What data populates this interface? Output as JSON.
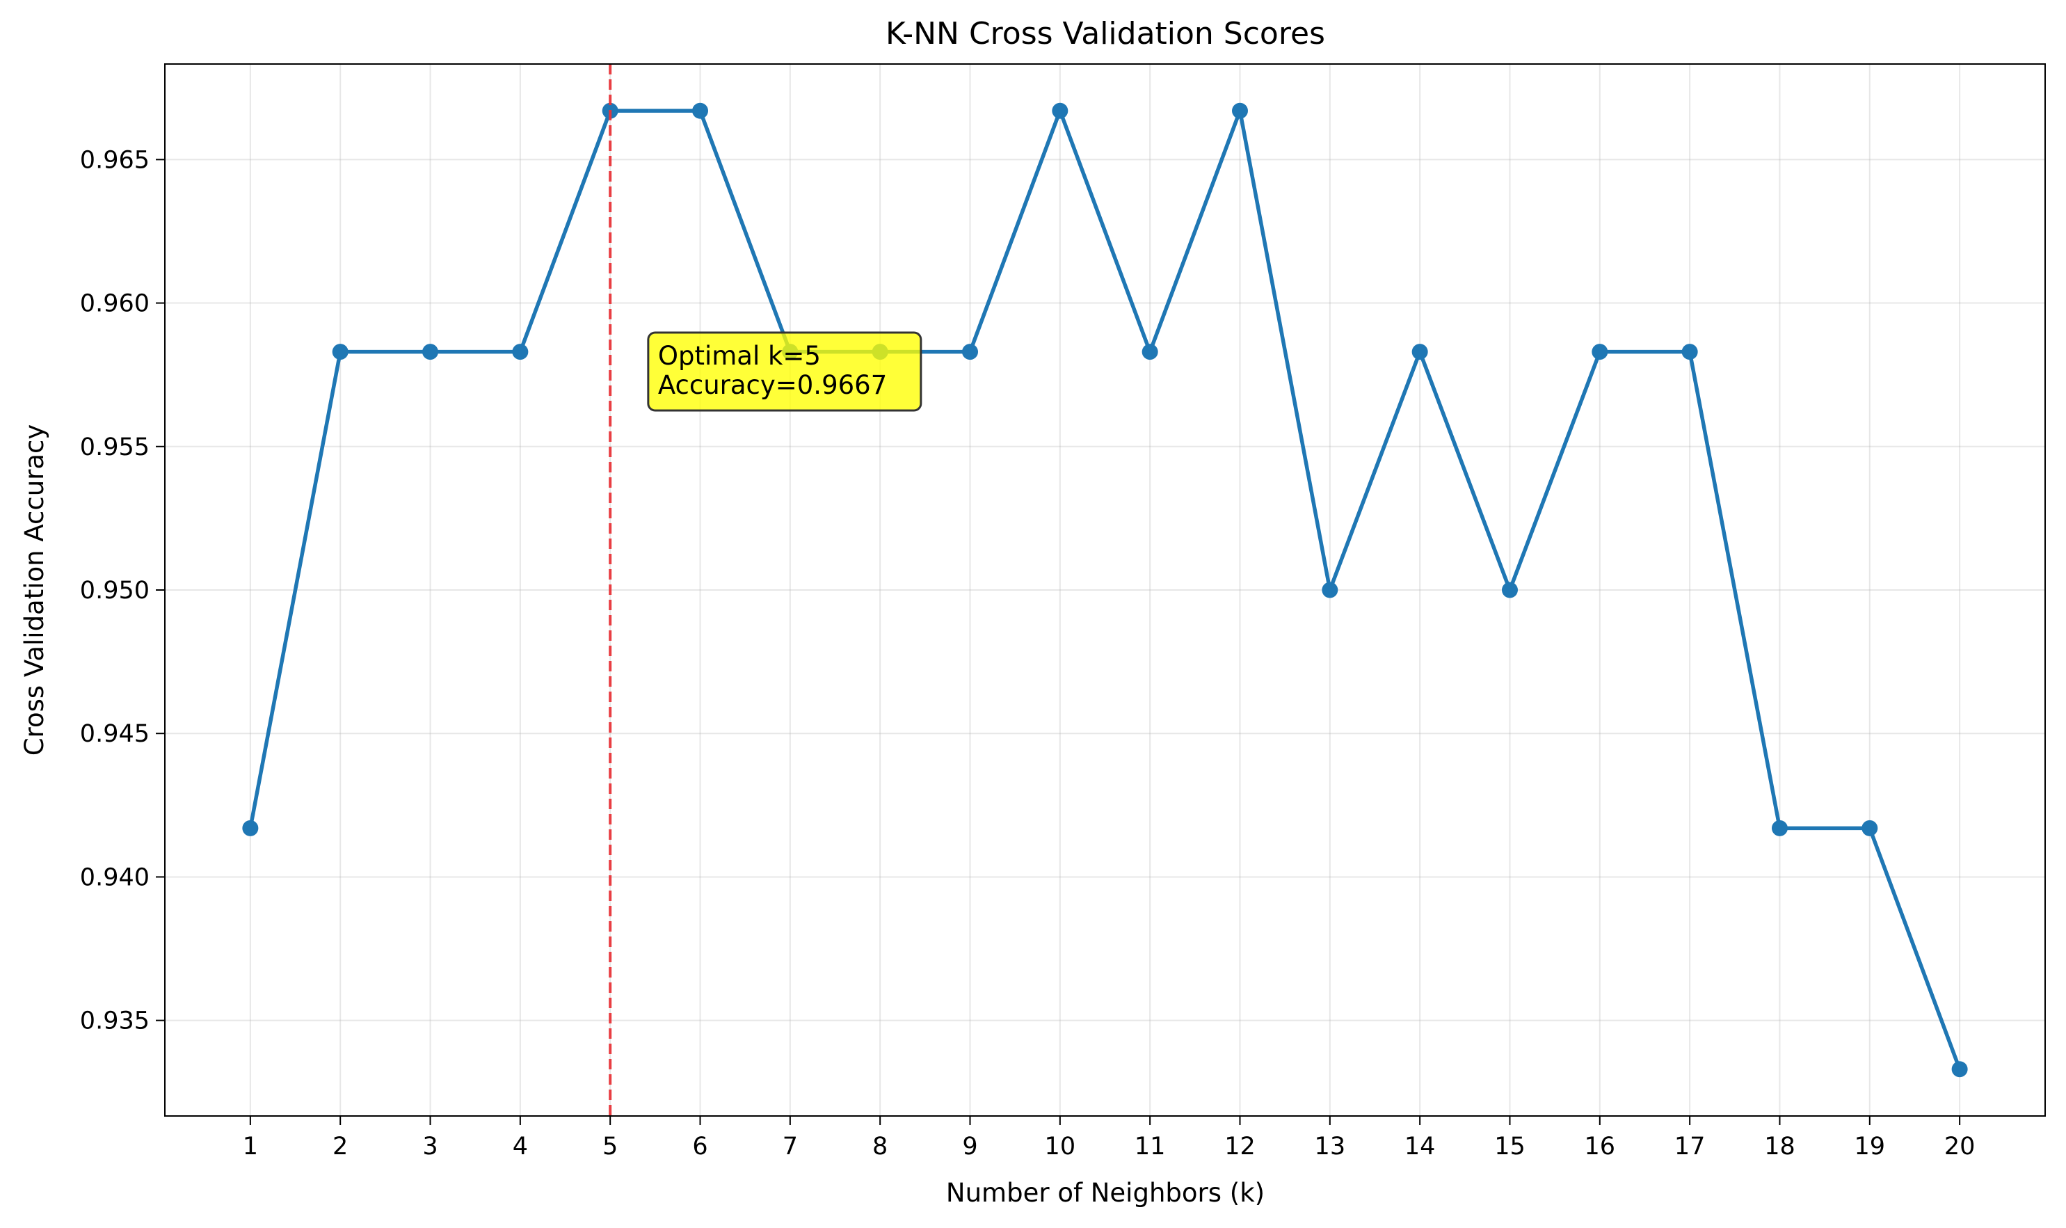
{
  "chart_data": {
    "type": "line",
    "title": "K-NN Cross Validation Scores",
    "xlabel": "Number of Neighbors (k)",
    "ylabel": "Cross Validation Accuracy",
    "x": [
      1,
      2,
      3,
      4,
      5,
      6,
      7,
      8,
      9,
      10,
      11,
      12,
      13,
      14,
      15,
      16,
      17,
      18,
      19,
      20
    ],
    "series": [
      {
        "values": [
          0.9417,
          0.9583,
          0.9583,
          0.9583,
          0.9667,
          0.9667,
          0.9583,
          0.9583,
          0.9583,
          0.9667,
          0.9583,
          0.9667,
          0.95,
          0.9583,
          0.95,
          0.9583,
          0.9583,
          0.9417,
          0.9417,
          0.9333
        ],
        "color": "#1f77b4"
      }
    ],
    "xlim": [
      0.05,
      20.95
    ],
    "ylim": [
      0.93167,
      0.96833
    ],
    "xticks": [
      "1",
      "2",
      "3",
      "4",
      "5",
      "6",
      "7",
      "8",
      "9",
      "10",
      "11",
      "12",
      "13",
      "14",
      "15",
      "16",
      "17",
      "18",
      "19",
      "20"
    ],
    "yticks": [
      "0.935",
      "0.940",
      "0.945",
      "0.950",
      "0.955",
      "0.960",
      "0.965"
    ],
    "ytick_values": [
      0.935,
      0.94,
      0.945,
      0.95,
      0.955,
      0.96,
      0.965
    ],
    "grid": true,
    "vline": {
      "x": 5,
      "color": "#e8353a",
      "style": "dashed"
    },
    "annotation": {
      "lines": [
        "Optimal k=5",
        "Accuracy=0.9667"
      ],
      "x": 5.5,
      "y": 0.9575,
      "background": "#ffff00"
    }
  }
}
